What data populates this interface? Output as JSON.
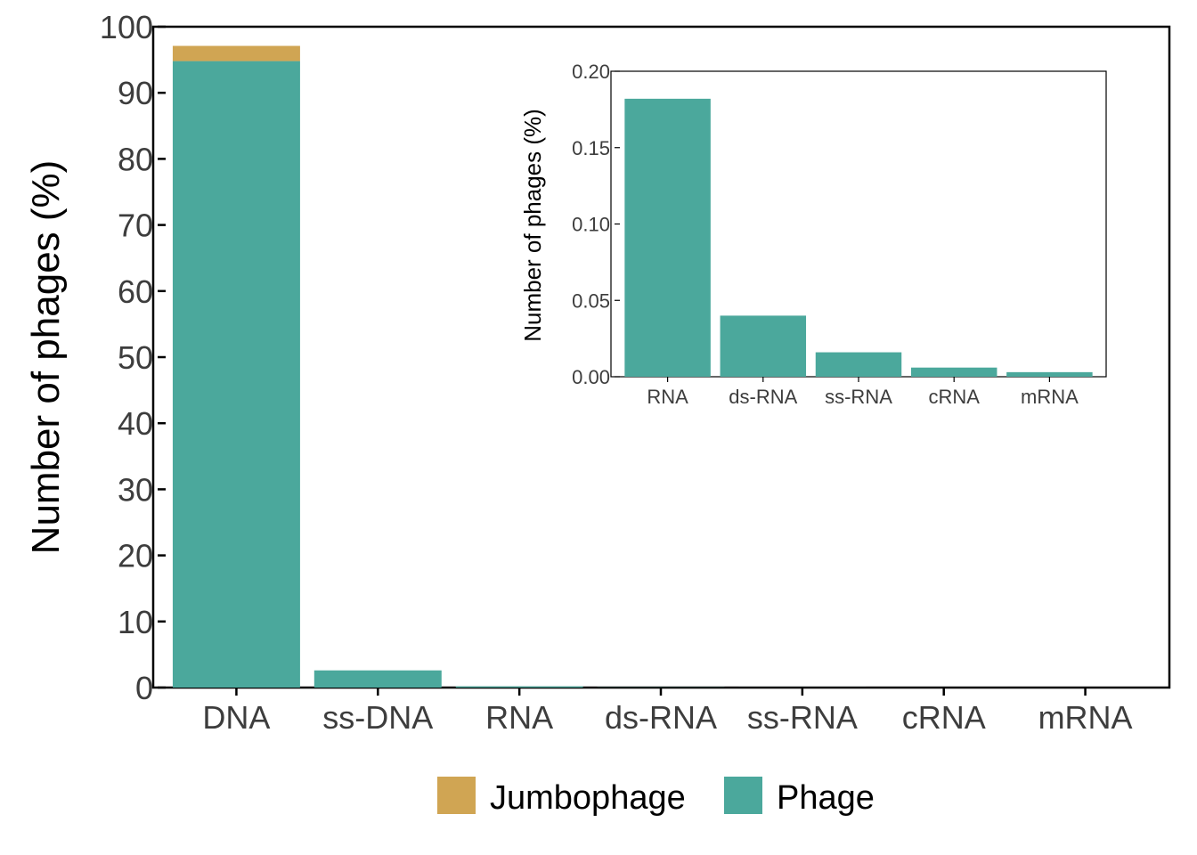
{
  "chart_data": [
    {
      "id": "main",
      "type": "bar",
      "stacked": true,
      "categories": [
        "DNA",
        "ss-DNA",
        "RNA",
        "ds-RNA",
        "ss-RNA",
        "cRNA",
        "mRNA"
      ],
      "series": [
        {
          "name": "Phage",
          "color": "#4ba89c",
          "values": [
            94.8,
            2.6,
            0.18,
            0.04,
            0.016,
            0.006,
            0.003
          ]
        },
        {
          "name": "Jumbophage",
          "color": "#d0a553",
          "values": [
            2.3,
            0,
            0,
            0,
            0,
            0,
            0
          ]
        }
      ],
      "ylabel": "Number of phages (%)",
      "ylim": [
        0,
        100
      ],
      "yticks": [
        "0",
        "10",
        "20",
        "30",
        "40",
        "50",
        "60",
        "70",
        "80",
        "90",
        "100"
      ],
      "legend": {
        "position": "bottom",
        "entries": [
          {
            "label": "Jumbophage",
            "color": "#d0a553"
          },
          {
            "label": "Phage",
            "color": "#4ba89c"
          }
        ]
      },
      "grid": false
    },
    {
      "id": "inset",
      "type": "bar",
      "categories": [
        "RNA",
        "ds-RNA",
        "ss-RNA",
        "cRNA",
        "mRNA"
      ],
      "series": [
        {
          "name": "Phage",
          "color": "#4ba89c",
          "values": [
            0.182,
            0.04,
            0.016,
            0.006,
            0.003
          ]
        }
      ],
      "ylabel": "Number of phages (%)",
      "ylim": [
        0,
        0.2
      ],
      "yticks": [
        "0.00",
        "0.05",
        "0.10",
        "0.15",
        "0.20"
      ],
      "grid": false
    }
  ]
}
